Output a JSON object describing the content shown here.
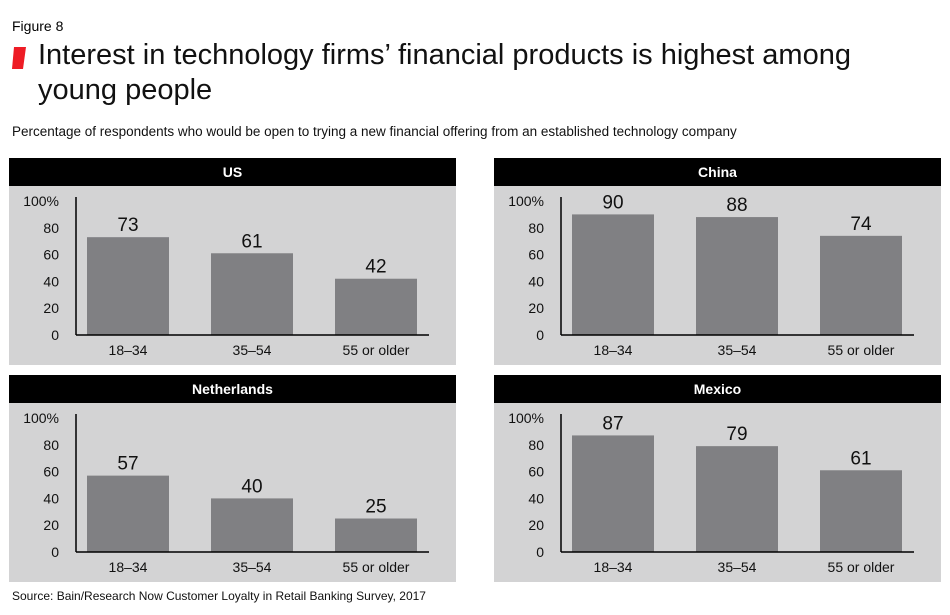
{
  "figure_label": "Figure 8",
  "title": "Interest in technology firms’ financial products is highest among young people",
  "subtitle": "Percentage of respondents who would be open to trying a new financial offering from an established technology company",
  "source": "Source: Bain/Research Now Customer Loyalty in Retail Banking Survey, 2017",
  "colors": {
    "accent": "#ee1c25",
    "header": "#000000",
    "panel_bg": "#d3d3d4",
    "bar": "#808083",
    "axis": "#000000"
  },
  "chart_data": [
    {
      "type": "bar",
      "title": "US",
      "categories": [
        "18–34",
        "35–54",
        "55 or older"
      ],
      "values": [
        73,
        61,
        42
      ],
      "value_labels": [
        "73",
        "61",
        "42"
      ],
      "yticks": [
        "0",
        "20",
        "40",
        "60",
        "80",
        "100%"
      ],
      "ylim": [
        0,
        100
      ],
      "grid": false
    },
    {
      "type": "bar",
      "title": "China",
      "categories": [
        "18–34",
        "35–54",
        "55 or older"
      ],
      "values": [
        90,
        88,
        74
      ],
      "value_labels": [
        "90",
        "88",
        "74"
      ],
      "yticks": [
        "0",
        "20",
        "40",
        "60",
        "80",
        "100%"
      ],
      "ylim": [
        0,
        100
      ],
      "grid": false
    },
    {
      "type": "bar",
      "title": "Netherlands",
      "categories": [
        "18–34",
        "35–54",
        "55 or older"
      ],
      "values": [
        57,
        40,
        25
      ],
      "value_labels": [
        "57",
        "40",
        "25"
      ],
      "yticks": [
        "0",
        "20",
        "40",
        "60",
        "80",
        "100%"
      ],
      "ylim": [
        0,
        100
      ],
      "grid": false
    },
    {
      "type": "bar",
      "title": "Mexico",
      "categories": [
        "18–34",
        "35–54",
        "55 or older"
      ],
      "values": [
        87,
        79,
        61
      ],
      "value_labels": [
        "87",
        "79",
        "61"
      ],
      "yticks": [
        "0",
        "20",
        "40",
        "60",
        "80",
        "100%"
      ],
      "ylim": [
        0,
        100
      ],
      "grid": false
    }
  ]
}
